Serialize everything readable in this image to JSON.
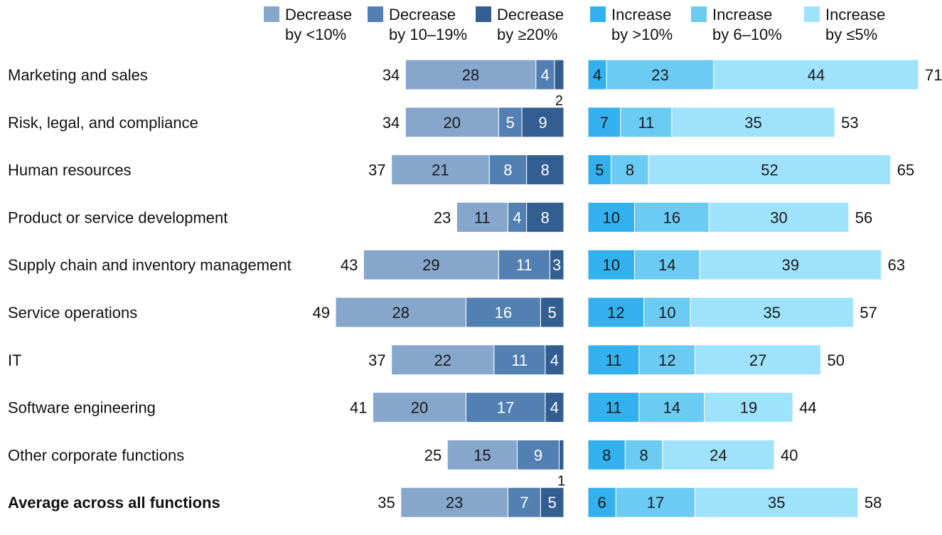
{
  "chart_data": {
    "type": "bar",
    "subtype": "diverging-stacked-horizontal",
    "grid": false,
    "legend_position": "top",
    "legend": [
      {
        "id": "dec_lt10",
        "line1": "Decrease",
        "line2": "by <10%",
        "color": "#86a6cc"
      },
      {
        "id": "dec_10_19",
        "line1": "Decrease",
        "line2": "by 10–19%",
        "color": "#5380b2"
      },
      {
        "id": "dec_ge20",
        "line1": "Decrease",
        "line2": "by ≥20%",
        "color": "#335e92"
      },
      {
        "id": "inc_gt10",
        "line1": "Increase",
        "line2": "by >10%",
        "color": "#33b1ef"
      },
      {
        "id": "inc_6_10",
        "line1": "Increase",
        "line2": "by 6–10%",
        "color": "#6ccbf3"
      },
      {
        "id": "inc_le5",
        "line1": "Increase",
        "line2": "by ≤5%",
        "color": "#9ee3fb"
      }
    ],
    "rows": [
      {
        "category": "Marketing and sales",
        "bold": false,
        "decrease": {
          "lt10": 28,
          "p10_19": 4,
          "ge20": 2,
          "total": 34
        },
        "increase": {
          "gt10": 4,
          "p6_10": 23,
          "le5": 44,
          "total": 71
        }
      },
      {
        "category": "Risk, legal, and compliance",
        "bold": false,
        "decrease": {
          "lt10": 20,
          "p10_19": 5,
          "ge20": 9,
          "total": 34
        },
        "increase": {
          "gt10": 7,
          "p6_10": 11,
          "le5": 35,
          "total": 53
        }
      },
      {
        "category": "Human resources",
        "bold": false,
        "decrease": {
          "lt10": 21,
          "p10_19": 8,
          "ge20": 8,
          "total": 37
        },
        "increase": {
          "gt10": 5,
          "p6_10": 8,
          "le5": 52,
          "total": 65
        }
      },
      {
        "category": "Product or service development",
        "bold": false,
        "decrease": {
          "lt10": 11,
          "p10_19": 4,
          "ge20": 8,
          "total": 23
        },
        "increase": {
          "gt10": 10,
          "p6_10": 16,
          "le5": 30,
          "total": 56
        }
      },
      {
        "category": "Supply chain and inventory management",
        "bold": false,
        "decrease": {
          "lt10": 29,
          "p10_19": 11,
          "ge20": 3,
          "total": 43
        },
        "increase": {
          "gt10": 10,
          "p6_10": 14,
          "le5": 39,
          "total": 63
        }
      },
      {
        "category": "Service operations",
        "bold": false,
        "decrease": {
          "lt10": 28,
          "p10_19": 16,
          "ge20": 5,
          "total": 49
        },
        "increase": {
          "gt10": 12,
          "p6_10": 10,
          "le5": 35,
          "total": 57
        }
      },
      {
        "category": "IT",
        "bold": false,
        "decrease": {
          "lt10": 22,
          "p10_19": 11,
          "ge20": 4,
          "total": 37
        },
        "increase": {
          "gt10": 11,
          "p6_10": 12,
          "le5": 27,
          "total": 50
        }
      },
      {
        "category": "Software engineering",
        "bold": false,
        "decrease": {
          "lt10": 20,
          "p10_19": 17,
          "ge20": 4,
          "total": 41
        },
        "increase": {
          "gt10": 11,
          "p6_10": 14,
          "le5": 19,
          "total": 44
        }
      },
      {
        "category": "Other corporate functions",
        "bold": false,
        "decrease": {
          "lt10": 15,
          "p10_19": 9,
          "ge20": 1,
          "total": 25
        },
        "increase": {
          "gt10": 8,
          "p6_10": 8,
          "le5": 24,
          "total": 40
        }
      },
      {
        "category": "Average across all functions",
        "bold": true,
        "decrease": {
          "lt10": 23,
          "p10_19": 7,
          "ge20": 5,
          "total": 35
        },
        "increase": {
          "gt10": 6,
          "p6_10": 17,
          "le5": 35,
          "total": 58
        }
      }
    ]
  }
}
